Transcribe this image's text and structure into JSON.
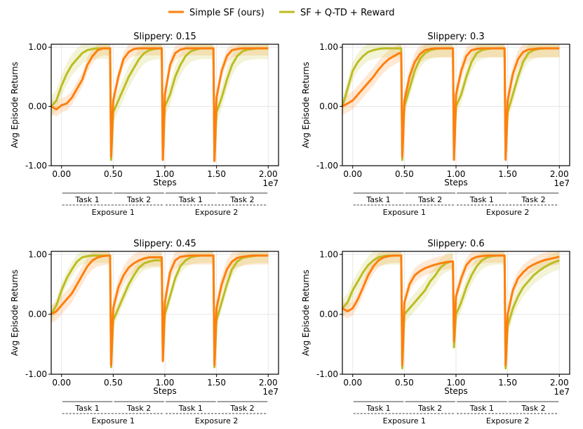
{
  "legend": {
    "placement": "top-center",
    "entries": [
      {
        "label": "Simple SF (ours)",
        "color": "#ff7f0e"
      },
      {
        "label": "SF + Q-TD + Reward",
        "color": "#bcbd22"
      }
    ]
  },
  "annotations": {
    "tasks": [
      "Task 1",
      "Task 2",
      "Task 1",
      "Task 2"
    ],
    "exposures": [
      "Exposure 1",
      "Exposure 2"
    ]
  },
  "chart_data": [
    {
      "type": "line",
      "title": "Slippery: 0.15",
      "xlabel": "Steps",
      "ylabel": "Avg Episode Returns",
      "x_scale_label": "1e7",
      "xlim": [
        -0.1,
        2.1
      ],
      "ylim": [
        -1.0,
        1.05
      ],
      "xticks": [
        0.0,
        0.5,
        1.0,
        1.5,
        2.0
      ],
      "xtick_labels": [
        "0.00",
        "0.50",
        "1.00",
        "1.50",
        "2.00"
      ],
      "yticks": [
        -1.0,
        0.0,
        1.0
      ],
      "ytick_labels": [
        "-1.00",
        "0.00",
        "1.00"
      ],
      "grid": true,
      "series": [
        {
          "name": "Simple SF (ours)",
          "color": "#ff7f0e",
          "band": 0.12,
          "x": [
            -0.1,
            -0.05,
            0.0,
            0.05,
            0.1,
            0.15,
            0.2,
            0.25,
            0.3,
            0.35,
            0.4,
            0.45,
            0.47,
            0.48,
            0.5,
            0.55,
            0.6,
            0.65,
            0.7,
            0.75,
            0.8,
            0.85,
            0.9,
            0.95,
            0.97,
            0.98,
            1.0,
            1.05,
            1.1,
            1.15,
            1.2,
            1.25,
            1.3,
            1.35,
            1.4,
            1.45,
            1.47,
            1.48,
            1.5,
            1.55,
            1.6,
            1.65,
            1.7,
            1.75,
            1.8,
            1.85,
            1.9,
            1.95,
            2.0
          ],
          "y": [
            0.0,
            -0.05,
            0.02,
            0.05,
            0.15,
            0.3,
            0.45,
            0.7,
            0.85,
            0.95,
            0.98,
            0.98,
            0.98,
            -0.85,
            0.1,
            0.5,
            0.8,
            0.92,
            0.97,
            0.98,
            0.98,
            0.98,
            0.98,
            0.98,
            0.98,
            -0.9,
            0.2,
            0.7,
            0.9,
            0.96,
            0.98,
            0.98,
            0.98,
            0.98,
            0.98,
            0.98,
            0.98,
            -0.92,
            0.15,
            0.6,
            0.85,
            0.95,
            0.97,
            0.98,
            0.98,
            0.98,
            0.98,
            0.98,
            0.98
          ]
        },
        {
          "name": "SF + Q-TD + Reward",
          "color": "#bcbd22",
          "band": 0.18,
          "x": [
            -0.1,
            -0.05,
            0.0,
            0.05,
            0.1,
            0.15,
            0.2,
            0.25,
            0.3,
            0.35,
            0.4,
            0.45,
            0.47,
            0.48,
            0.5,
            0.55,
            0.6,
            0.65,
            0.7,
            0.75,
            0.8,
            0.85,
            0.9,
            0.95,
            0.97,
            0.98,
            1.0,
            1.05,
            1.1,
            1.15,
            1.2,
            1.25,
            1.3,
            1.35,
            1.4,
            1.45,
            1.47,
            1.48,
            1.5,
            1.55,
            1.6,
            1.65,
            1.7,
            1.75,
            1.8,
            1.85,
            1.9,
            1.95,
            2.0
          ],
          "y": [
            0.0,
            0.1,
            0.35,
            0.55,
            0.7,
            0.8,
            0.9,
            0.95,
            0.97,
            0.98,
            0.98,
            0.98,
            0.98,
            -0.9,
            -0.1,
            0.1,
            0.3,
            0.5,
            0.65,
            0.8,
            0.9,
            0.95,
            0.97,
            0.98,
            0.98,
            -0.9,
            0.0,
            0.2,
            0.5,
            0.7,
            0.85,
            0.93,
            0.96,
            0.98,
            0.98,
            0.98,
            0.98,
            -0.92,
            -0.1,
            0.15,
            0.45,
            0.7,
            0.85,
            0.93,
            0.96,
            0.97,
            0.98,
            0.98,
            0.98
          ]
        }
      ]
    },
    {
      "type": "line",
      "title": "Slippery: 0.3",
      "xlabel": "Steps",
      "ylabel": "Avg Episode Returns",
      "x_scale_label": "1e7",
      "xlim": [
        -0.1,
        2.1
      ],
      "ylim": [
        -1.0,
        1.05
      ],
      "xticks": [
        0.0,
        0.5,
        1.0,
        1.5,
        2.0
      ],
      "xtick_labels": [
        "0.00",
        "0.50",
        "1.00",
        "1.50",
        "2.00"
      ],
      "yticks": [
        -1.0,
        0.0,
        1.0
      ],
      "ytick_labels": [
        "-1.00",
        "0.00",
        "1.00"
      ],
      "grid": true,
      "series": [
        {
          "name": "Simple SF (ours)",
          "color": "#ff7f0e",
          "band": 0.15,
          "x": [
            -0.1,
            -0.05,
            0.0,
            0.05,
            0.1,
            0.15,
            0.2,
            0.25,
            0.3,
            0.35,
            0.4,
            0.45,
            0.47,
            0.48,
            0.5,
            0.55,
            0.6,
            0.65,
            0.7,
            0.75,
            0.8,
            0.85,
            0.9,
            0.95,
            0.97,
            0.98,
            1.0,
            1.05,
            1.1,
            1.15,
            1.2,
            1.25,
            1.3,
            1.35,
            1.4,
            1.45,
            1.47,
            1.48,
            1.5,
            1.55,
            1.6,
            1.65,
            1.7,
            1.75,
            1.8,
            1.85,
            1.9,
            1.95,
            2.0
          ],
          "y": [
            0.0,
            0.05,
            0.1,
            0.2,
            0.3,
            0.4,
            0.5,
            0.62,
            0.72,
            0.8,
            0.85,
            0.9,
            0.9,
            -0.85,
            0.1,
            0.5,
            0.75,
            0.88,
            0.95,
            0.97,
            0.98,
            0.98,
            0.98,
            0.98,
            0.98,
            -0.9,
            0.2,
            0.6,
            0.85,
            0.95,
            0.97,
            0.98,
            0.98,
            0.98,
            0.98,
            0.98,
            0.98,
            -0.9,
            0.1,
            0.55,
            0.8,
            0.92,
            0.96,
            0.97,
            0.98,
            0.98,
            0.98,
            0.98,
            0.98
          ]
        },
        {
          "name": "SF + Q-TD + Reward",
          "color": "#bcbd22",
          "band": 0.15,
          "x": [
            -0.1,
            -0.05,
            0.0,
            0.05,
            0.1,
            0.15,
            0.2,
            0.25,
            0.3,
            0.35,
            0.4,
            0.45,
            0.47,
            0.48,
            0.5,
            0.55,
            0.6,
            0.65,
            0.7,
            0.75,
            0.8,
            0.85,
            0.9,
            0.95,
            0.97,
            0.98,
            1.0,
            1.05,
            1.1,
            1.15,
            1.2,
            1.25,
            1.3,
            1.35,
            1.4,
            1.45,
            1.47,
            1.48,
            1.5,
            1.55,
            1.6,
            1.65,
            1.7,
            1.75,
            1.8,
            1.85,
            1.9,
            1.95,
            2.0
          ],
          "y": [
            0.0,
            0.3,
            0.6,
            0.75,
            0.85,
            0.92,
            0.95,
            0.97,
            0.98,
            0.98,
            0.98,
            0.98,
            0.98,
            -0.9,
            0.0,
            0.3,
            0.6,
            0.8,
            0.9,
            0.95,
            0.97,
            0.98,
            0.98,
            0.98,
            0.98,
            -0.85,
            0.0,
            0.2,
            0.5,
            0.75,
            0.9,
            0.95,
            0.97,
            0.98,
            0.98,
            0.98,
            0.98,
            -0.85,
            -0.1,
            0.2,
            0.5,
            0.75,
            0.9,
            0.95,
            0.97,
            0.98,
            0.98,
            0.98,
            0.98
          ]
        }
      ]
    },
    {
      "type": "line",
      "title": "Slippery: 0.45",
      "xlabel": "Steps",
      "ylabel": "Avg Episode Returns",
      "x_scale_label": "1e7",
      "xlim": [
        -0.1,
        2.1
      ],
      "ylim": [
        -1.0,
        1.05
      ],
      "xticks": [
        0.0,
        0.5,
        1.0,
        1.5,
        2.0
      ],
      "xtick_labels": [
        "0.00",
        "0.50",
        "1.00",
        "1.50",
        "2.00"
      ],
      "yticks": [
        -1.0,
        0.0,
        1.0
      ],
      "ytick_labels": [
        "-1.00",
        "0.00",
        "1.00"
      ],
      "grid": true,
      "series": [
        {
          "name": "Simple SF (ours)",
          "color": "#ff7f0e",
          "band": 0.15,
          "x": [
            -0.1,
            -0.05,
            0.0,
            0.05,
            0.1,
            0.15,
            0.2,
            0.25,
            0.3,
            0.35,
            0.4,
            0.45,
            0.47,
            0.48,
            0.5,
            0.55,
            0.6,
            0.65,
            0.7,
            0.75,
            0.8,
            0.85,
            0.9,
            0.95,
            0.97,
            0.98,
            1.0,
            1.05,
            1.1,
            1.15,
            1.2,
            1.25,
            1.3,
            1.35,
            1.4,
            1.45,
            1.47,
            1.48,
            1.5,
            1.55,
            1.6,
            1.65,
            1.7,
            1.75,
            1.8,
            1.85,
            1.9,
            1.95,
            2.0
          ],
          "y": [
            0.0,
            0.05,
            0.15,
            0.25,
            0.35,
            0.5,
            0.65,
            0.8,
            0.9,
            0.95,
            0.97,
            0.98,
            0.98,
            -0.85,
            0.1,
            0.45,
            0.65,
            0.78,
            0.85,
            0.9,
            0.93,
            0.95,
            0.95,
            0.95,
            0.95,
            -0.78,
            0.2,
            0.7,
            0.9,
            0.96,
            0.97,
            0.98,
            0.98,
            0.98,
            0.98,
            0.98,
            0.98,
            -0.85,
            0.1,
            0.5,
            0.75,
            0.88,
            0.94,
            0.96,
            0.97,
            0.98,
            0.98,
            0.98,
            0.98
          ]
        },
        {
          "name": "SF + Q-TD + Reward",
          "color": "#bcbd22",
          "band": 0.12,
          "x": [
            -0.1,
            -0.05,
            0.0,
            0.05,
            0.1,
            0.15,
            0.2,
            0.25,
            0.3,
            0.35,
            0.4,
            0.45,
            0.47,
            0.48,
            0.5,
            0.55,
            0.6,
            0.65,
            0.7,
            0.75,
            0.8,
            0.85,
            0.9,
            0.95,
            0.97,
            0.98,
            1.0,
            1.05,
            1.1,
            1.15,
            1.2,
            1.25,
            1.3,
            1.35,
            1.4,
            1.45,
            1.47,
            1.48,
            1.5,
            1.55,
            1.6,
            1.65,
            1.7,
            1.75,
            1.8,
            1.85,
            1.9,
            1.95,
            2.0
          ],
          "y": [
            0.0,
            0.15,
            0.4,
            0.6,
            0.75,
            0.88,
            0.95,
            0.97,
            0.98,
            0.98,
            0.98,
            0.98,
            0.98,
            -0.88,
            -0.1,
            0.1,
            0.3,
            0.5,
            0.65,
            0.78,
            0.85,
            0.88,
            0.9,
            0.9,
            0.9,
            -0.75,
            0.0,
            0.3,
            0.6,
            0.8,
            0.9,
            0.95,
            0.97,
            0.98,
            0.98,
            0.98,
            0.98,
            -0.88,
            -0.1,
            0.2,
            0.5,
            0.75,
            0.88,
            0.94,
            0.96,
            0.97,
            0.98,
            0.98,
            0.98
          ]
        }
      ]
    },
    {
      "type": "line",
      "title": "Slippery: 0.6",
      "xlabel": "Steps",
      "ylabel": "Avg Episode Returns",
      "x_scale_label": "1e7",
      "xlim": [
        -0.1,
        2.1
      ],
      "ylim": [
        -1.0,
        1.05
      ],
      "xticks": [
        0.0,
        0.5,
        1.0,
        1.5,
        2.0
      ],
      "xtick_labels": [
        "0.00",
        "0.50",
        "1.00",
        "1.50",
        "2.00"
      ],
      "yticks": [
        -1.0,
        0.0,
        1.0
      ],
      "ytick_labels": [
        "-1.00",
        "0.00",
        "1.00"
      ],
      "grid": true,
      "series": [
        {
          "name": "Simple SF (ours)",
          "color": "#ff7f0e",
          "band": 0.12,
          "x": [
            -0.1,
            -0.05,
            0.0,
            0.05,
            0.1,
            0.15,
            0.2,
            0.25,
            0.3,
            0.35,
            0.4,
            0.45,
            0.47,
            0.48,
            0.5,
            0.55,
            0.6,
            0.65,
            0.7,
            0.75,
            0.8,
            0.85,
            0.9,
            0.95,
            0.97,
            0.98,
            1.0,
            1.05,
            1.1,
            1.15,
            1.2,
            1.25,
            1.3,
            1.35,
            1.4,
            1.45,
            1.47,
            1.48,
            1.5,
            1.55,
            1.6,
            1.65,
            1.7,
            1.75,
            1.8,
            1.85,
            1.9,
            1.95,
            2.0
          ],
          "y": [
            0.1,
            0.05,
            0.1,
            0.25,
            0.45,
            0.65,
            0.8,
            0.9,
            0.95,
            0.97,
            0.98,
            0.98,
            0.98,
            -0.85,
            0.2,
            0.5,
            0.65,
            0.72,
            0.77,
            0.8,
            0.83,
            0.85,
            0.87,
            0.88,
            0.88,
            -0.45,
            0.3,
            0.6,
            0.82,
            0.92,
            0.96,
            0.97,
            0.98,
            0.98,
            0.98,
            0.98,
            0.98,
            -0.85,
            0.0,
            0.4,
            0.6,
            0.7,
            0.78,
            0.83,
            0.87,
            0.9,
            0.92,
            0.94,
            0.96
          ]
        },
        {
          "name": "SF + Q-TD + Reward",
          "color": "#bcbd22",
          "band": 0.15,
          "x": [
            -0.1,
            -0.05,
            0.0,
            0.05,
            0.1,
            0.15,
            0.2,
            0.25,
            0.3,
            0.35,
            0.4,
            0.45,
            0.47,
            0.48,
            0.5,
            0.55,
            0.6,
            0.65,
            0.7,
            0.75,
            0.8,
            0.85,
            0.9,
            0.95,
            0.97,
            0.98,
            1.0,
            1.05,
            1.1,
            1.15,
            1.2,
            1.25,
            1.3,
            1.35,
            1.4,
            1.45,
            1.47,
            1.48,
            1.5,
            1.55,
            1.6,
            1.65,
            1.7,
            1.75,
            1.8,
            1.85,
            1.9,
            1.95,
            2.0
          ],
          "y": [
            0.1,
            0.2,
            0.4,
            0.55,
            0.7,
            0.82,
            0.9,
            0.95,
            0.97,
            0.98,
            0.98,
            0.98,
            0.98,
            -0.9,
            0.0,
            0.1,
            0.2,
            0.3,
            0.4,
            0.55,
            0.65,
            0.78,
            0.85,
            0.88,
            0.88,
            -0.55,
            0.0,
            0.2,
            0.45,
            0.65,
            0.8,
            0.9,
            0.95,
            0.97,
            0.98,
            0.98,
            0.98,
            -0.9,
            -0.2,
            0.1,
            0.3,
            0.45,
            0.55,
            0.65,
            0.72,
            0.78,
            0.83,
            0.87,
            0.9
          ]
        }
      ]
    }
  ]
}
